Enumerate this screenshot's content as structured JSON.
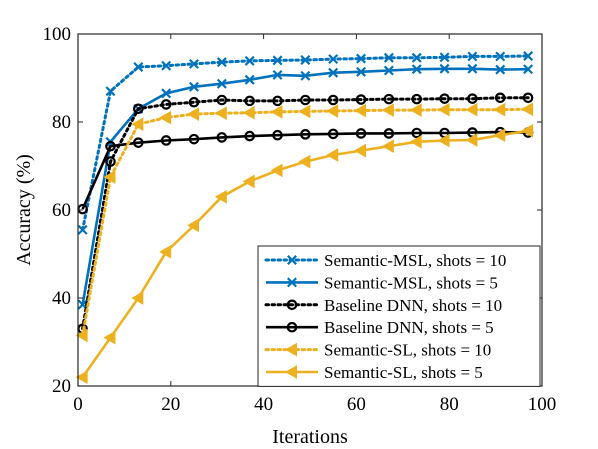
{
  "chart_data": {
    "type": "line",
    "title": "",
    "xlabel": "Iterations",
    "ylabel": "Accuracy (%)",
    "xlim": [
      0,
      100
    ],
    "ylim": [
      20,
      100
    ],
    "xticks": [
      0,
      20,
      40,
      60,
      80,
      100
    ],
    "yticks": [
      20,
      40,
      60,
      80,
      100
    ],
    "grid": false,
    "legend_position": "bottom-right",
    "x": [
      1,
      7,
      13,
      19,
      25,
      31,
      37,
      43,
      49,
      55,
      61,
      67,
      73,
      79,
      85,
      91,
      97
    ],
    "series": [
      {
        "name": "Semantic-MSL, shots = 10",
        "color": "#0072BD",
        "line_style": "dotted",
        "marker": "x",
        "values": [
          55.5,
          87,
          92.5,
          92.8,
          93.2,
          93.6,
          93.9,
          94.0,
          94.1,
          94.3,
          94.4,
          94.6,
          94.6,
          94.7,
          94.9,
          94.9,
          95.0
        ]
      },
      {
        "name": "Semantic-MSL, shots = 5",
        "color": "#0072BD",
        "line_style": "solid",
        "marker": "x",
        "values": [
          38.5,
          75.5,
          83.0,
          86.5,
          88.0,
          88.7,
          89.6,
          90.7,
          90.5,
          91.2,
          91.4,
          91.7,
          92.0,
          92.1,
          92.1,
          91.9,
          92.0
        ]
      },
      {
        "name": "Baseline DNN, shots = 10",
        "color": "#000000",
        "line_style": "dotted",
        "marker": "o",
        "values": [
          33.0,
          71.0,
          83.0,
          84.0,
          84.5,
          85.0,
          84.8,
          84.8,
          85.0,
          85.0,
          85.1,
          85.2,
          85.2,
          85.3,
          85.3,
          85.5,
          85.5
        ]
      },
      {
        "name": "Baseline DNN, shots = 5",
        "color": "#000000",
        "line_style": "solid",
        "marker": "o",
        "values": [
          60.2,
          74.5,
          75.3,
          75.8,
          76.1,
          76.5,
          76.8,
          77.0,
          77.2,
          77.3,
          77.4,
          77.4,
          77.5,
          77.5,
          77.6,
          77.7,
          77.6
        ]
      },
      {
        "name": "Semantic-SL, shots = 10",
        "color": "#EDB120",
        "line_style": "dotted",
        "marker": "triangle-left",
        "values": [
          31.5,
          67.5,
          79.5,
          81.0,
          81.8,
          82.0,
          82.1,
          82.3,
          82.4,
          82.5,
          82.6,
          82.7,
          82.7,
          82.8,
          82.8,
          82.8,
          82.9
        ]
      },
      {
        "name": "Semantic-SL, shots = 5",
        "color": "#EDB120",
        "line_style": "solid",
        "marker": "triangle-left",
        "values": [
          22.0,
          31.0,
          40.0,
          50.5,
          56.5,
          63.0,
          66.5,
          69.0,
          71.0,
          72.5,
          73.5,
          74.5,
          75.5,
          75.8,
          75.9,
          77.0,
          78.0
        ]
      }
    ]
  }
}
